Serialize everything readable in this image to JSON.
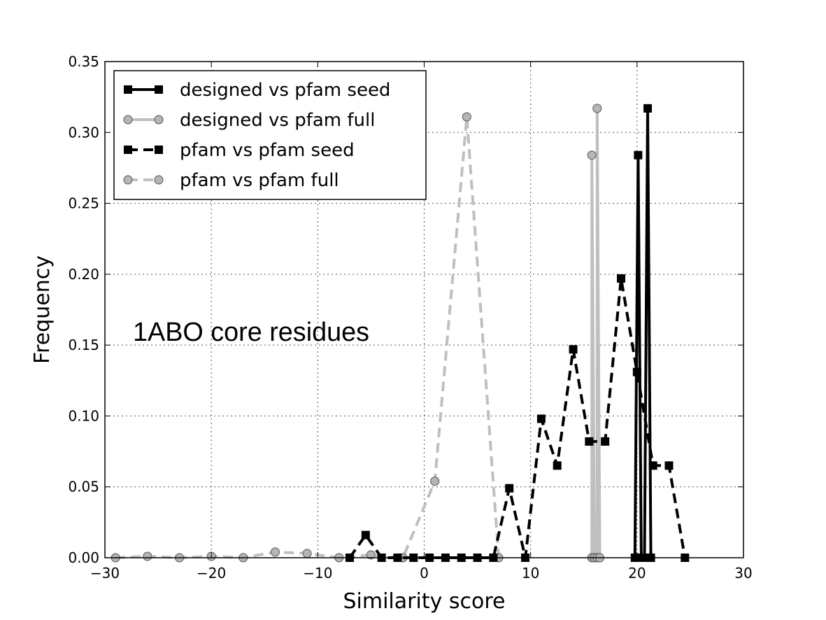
{
  "chart_data": {
    "type": "line",
    "xlabel": "Similarity score",
    "ylabel": "Frequency",
    "xlim": [
      -30,
      30
    ],
    "ylim": [
      0,
      0.35
    ],
    "xticks": [
      -30,
      -20,
      -10,
      0,
      10,
      20,
      30
    ],
    "xtick_labels": [
      "−30",
      "−20",
      "−10",
      "0",
      "10",
      "20",
      "30"
    ],
    "yticks": [
      0,
      0.05,
      0.1,
      0.15,
      0.2,
      0.25,
      0.3,
      0.35
    ],
    "ytick_labels": [
      "0.00",
      "0.05",
      "0.10",
      "0.15",
      "0.20",
      "0.25",
      "0.30",
      "0.35"
    ],
    "grid": true,
    "legend_position": "top-left",
    "annotation": "1ABO core residues",
    "series": [
      {
        "name": "pfam vs pfam full",
        "color": "#bfbfbf",
        "dash": "dashed",
        "marker": "circle",
        "x": [
          -29,
          -26,
          -23,
          -20,
          -17,
          -14,
          -11,
          -8,
          -5,
          -2,
          1,
          4,
          7
        ],
        "y": [
          0,
          0.001,
          0,
          0.001,
          0,
          0.004,
          0.003,
          0,
          0.002,
          0,
          0.054,
          0.311,
          0
        ]
      },
      {
        "name": "designed vs pfam full",
        "color": "#bfbfbf",
        "dash": "solid",
        "marker": "circle",
        "x": [
          15.75,
          15.75,
          16.0,
          16.25,
          16.25,
          16.5
        ],
        "y": [
          0,
          0.284,
          0,
          0,
          0.317,
          0
        ]
      },
      {
        "name": "pfam vs pfam seed",
        "color": "#000000",
        "dash": "dashed",
        "marker": "square",
        "x": [
          -7,
          -5.5,
          -4,
          -2.5,
          -1,
          0.5,
          2,
          3.5,
          5,
          6.5,
          8,
          9.5,
          11,
          12.5,
          14,
          15.5,
          17,
          18.5,
          20,
          21.5,
          23,
          24.5
        ],
        "y": [
          0,
          0.016,
          0,
          0,
          0,
          0,
          0,
          0,
          0,
          0,
          0.049,
          0,
          0.098,
          0.065,
          0.147,
          0.082,
          0.082,
          0.197,
          0.131,
          0.065,
          0.065,
          0
        ]
      },
      {
        "name": "designed vs pfam seed",
        "color": "#000000",
        "dash": "solid",
        "marker": "square",
        "x": [
          19.8,
          20.1,
          20.4,
          20.7,
          21.0,
          21.3
        ],
        "y": [
          0,
          0.284,
          0,
          0,
          0.317,
          0
        ]
      }
    ],
    "legend_order": [
      "designed vs pfam seed",
      "designed vs pfam full",
      "pfam vs pfam seed",
      "pfam vs pfam full"
    ]
  }
}
